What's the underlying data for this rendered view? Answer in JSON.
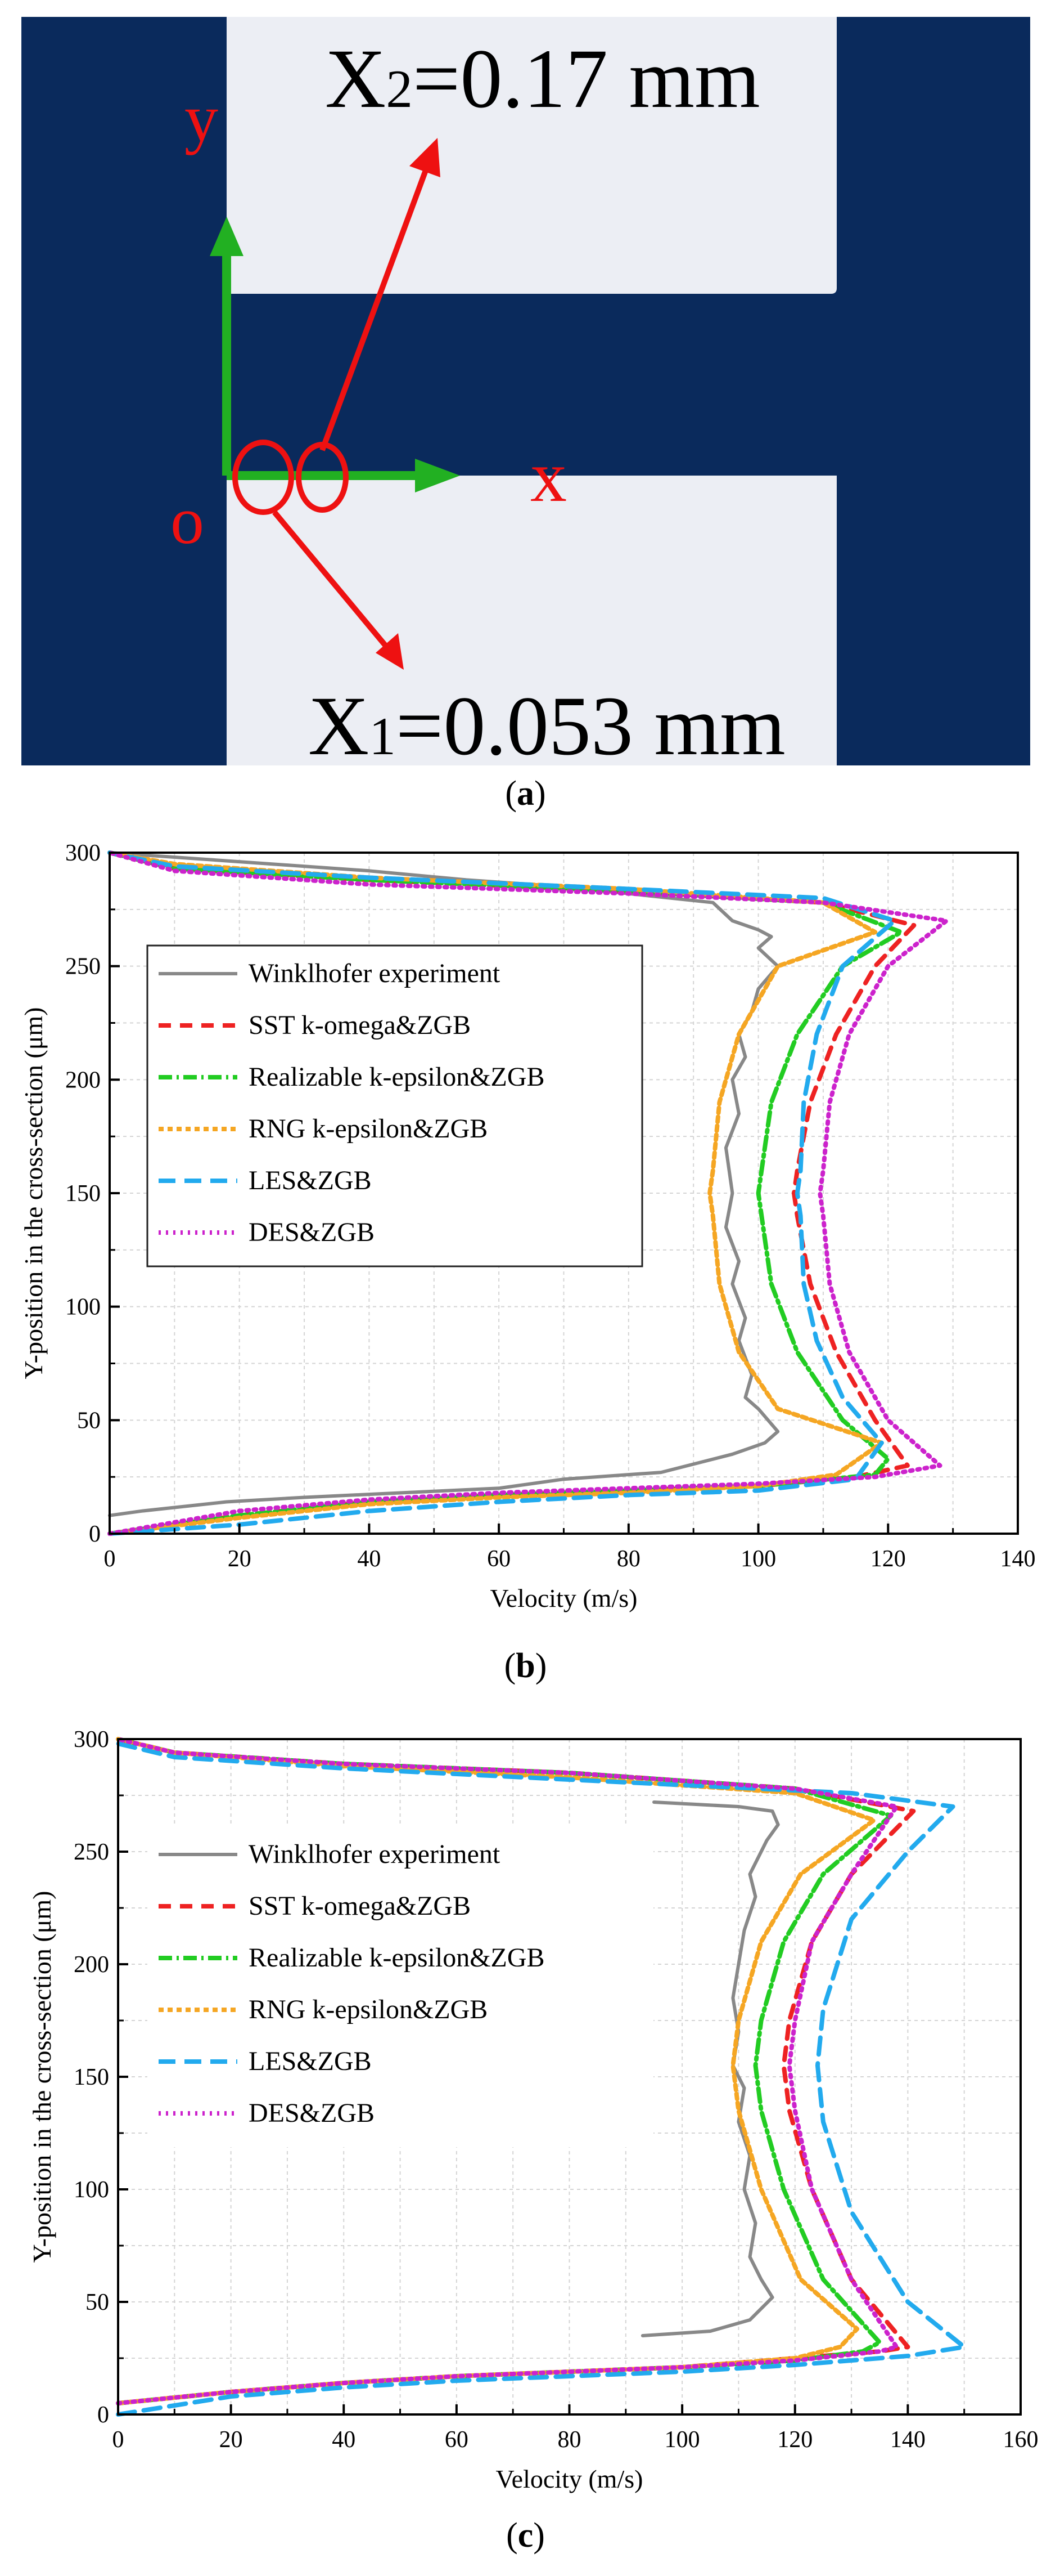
{
  "diagram": {
    "x2_label": "X2=0.17 mm",
    "x2_main": "X",
    "x2_sub": "2",
    "x2_rest": "=0.17 mm",
    "x1_label": "X1=0.053 mm",
    "x1_main": "X",
    "x1_sub": "1",
    "x1_rest": "=0.053 mm",
    "axis_y": "y",
    "axis_x": "x",
    "origin": "o",
    "background_color": "#0a2a5c",
    "wall_color": "#eceef4",
    "axis_color": "#22b022",
    "marker_color": "#ee1111"
  },
  "labels": {
    "a": "a",
    "b": "b",
    "c": "c",
    "open": "(",
    "close": ")"
  },
  "chart_data": [
    {
      "type": "line",
      "panel": "b",
      "xlabel": "Velocity (m/s)",
      "ylabel": "Y-position in the cross-section (μm)",
      "xlim": [
        0,
        140
      ],
      "ylim": [
        0,
        300
      ],
      "xticks": [
        "0",
        "20",
        "40",
        "60",
        "80",
        "100",
        "120",
        "140"
      ],
      "yticks": [
        "0",
        "50",
        "100",
        "150",
        "200",
        "250",
        "300"
      ],
      "legend_position": "upper-left",
      "series": [
        {
          "name": "Winklhofer experiment",
          "color": "#888888",
          "dash": "",
          "x": [
            0,
            5,
            18,
            30,
            45,
            60,
            70,
            85,
            96,
            101,
            103,
            100,
            98,
            99,
            97,
            98,
            96,
            97,
            95,
            96,
            95,
            97,
            96,
            98,
            97,
            99,
            100,
            103,
            100,
            102,
            100,
            96,
            93,
            70,
            55,
            40,
            20,
            0
          ],
          "y": [
            8,
            10,
            14,
            16,
            18,
            20,
            24,
            27,
            35,
            40,
            45,
            55,
            60,
            70,
            85,
            95,
            110,
            120,
            135,
            150,
            170,
            185,
            200,
            210,
            220,
            230,
            240,
            250,
            258,
            263,
            266,
            270,
            278,
            285,
            288,
            292,
            296,
            300
          ]
        },
        {
          "name": "SST k-omega&ZGB",
          "color": "#ee2222",
          "dash": "22,16",
          "x": [
            0,
            20,
            40,
            60,
            80,
            100,
            115,
            123,
            118,
            112,
            108,
            106,
            105.5,
            106,
            108,
            112,
            118,
            124,
            110,
            80,
            40,
            10,
            0
          ],
          "y": [
            0,
            8,
            14,
            17,
            19,
            21,
            25,
            30,
            50,
            80,
            110,
            140,
            150,
            160,
            190,
            220,
            250,
            268,
            278,
            283,
            288,
            293,
            300
          ]
        },
        {
          "name": "Realizable k-epsilon&ZGB",
          "color": "#22cc22",
          "dash": "24,8,4,8",
          "x": [
            0,
            20,
            40,
            60,
            80,
            100,
            118,
            120,
            113,
            106,
            102,
            100.5,
            100,
            100.5,
            102,
            106,
            113,
            122,
            110,
            80,
            40,
            10,
            0
          ],
          "y": [
            0,
            8,
            14,
            17,
            19,
            21,
            26,
            33,
            50,
            80,
            110,
            140,
            150,
            160,
            190,
            220,
            250,
            265,
            278,
            283,
            288,
            293,
            300
          ]
        },
        {
          "name": "RNG k-epsilon&ZGB",
          "color": "#f5a623",
          "dash": "9,7",
          "x": [
            0,
            20,
            40,
            60,
            80,
            100,
            112,
            119,
            103,
            97,
            94,
            93,
            92.5,
            93,
            94,
            97,
            103,
            118,
            110,
            80,
            40,
            10,
            0
          ],
          "y": [
            0,
            7,
            13,
            16,
            18,
            21,
            26,
            40,
            55,
            80,
            110,
            140,
            150,
            160,
            190,
            220,
            250,
            265,
            278,
            284,
            289,
            295,
            300
          ]
        },
        {
          "name": "LES&ZGB",
          "color": "#22aaee",
          "dash": "30,16",
          "x": [
            0,
            20,
            40,
            60,
            80,
            100,
            115,
            119,
            113,
            109,
            107,
            106.5,
            106,
            106.5,
            107,
            109,
            113,
            121,
            110,
            80,
            40,
            10,
            0
          ],
          "y": [
            0,
            4,
            10,
            14,
            17,
            19,
            24,
            40,
            60,
            85,
            110,
            140,
            150,
            160,
            190,
            220,
            250,
            270,
            280,
            284,
            289,
            294,
            300
          ]
        },
        {
          "name": "DES&ZGB",
          "color": "#cc22cc",
          "dash": "4,9",
          "x": [
            0,
            20,
            40,
            60,
            80,
            100,
            118,
            128,
            120,
            114,
            111,
            110,
            109.5,
            110,
            111,
            114,
            120,
            129,
            110,
            80,
            40,
            10,
            0
          ],
          "y": [
            0,
            10,
            15,
            18,
            20,
            22,
            25,
            30,
            50,
            80,
            110,
            140,
            150,
            160,
            190,
            220,
            250,
            270,
            278,
            282,
            286,
            292,
            300
          ]
        }
      ]
    },
    {
      "type": "line",
      "panel": "c",
      "xlabel": "Velocity (m/s)",
      "ylabel": "Y-position in the cross-section (μm)",
      "xlim": [
        0,
        160
      ],
      "ylim": [
        0,
        300
      ],
      "xticks": [
        "0",
        "20",
        "40",
        "60",
        "80",
        "100",
        "120",
        "140",
        "160"
      ],
      "yticks": [
        "0",
        "50",
        "100",
        "150",
        "200",
        "250",
        "300"
      ],
      "legend_position": "upper-left",
      "series": [
        {
          "name": "Winklhofer experiment",
          "color": "#888888",
          "dash": "",
          "x": [
            93,
            105,
            112,
            116,
            114,
            112,
            113,
            111,
            112,
            110,
            111,
            109,
            110,
            109,
            110,
            111,
            113,
            112,
            114,
            115,
            117,
            116,
            110,
            95
          ],
          "y": [
            35,
            37,
            42,
            52,
            60,
            70,
            85,
            100,
            115,
            130,
            145,
            155,
            170,
            185,
            200,
            215,
            230,
            240,
            250,
            255,
            262,
            268,
            270,
            272
          ]
        },
        {
          "name": "SST k-omega&ZGB",
          "color": "#ee2222",
          "dash": "22,16",
          "x": [
            0,
            20,
            40,
            60,
            80,
            100,
            120,
            135,
            140,
            130,
            123,
            119,
            118,
            119,
            123,
            130,
            141,
            120,
            80,
            40,
            10,
            0
          ],
          "y": [
            5,
            10,
            14,
            17,
            19,
            21,
            25,
            28,
            30,
            60,
            100,
            135,
            155,
            175,
            210,
            240,
            268,
            278,
            285,
            289,
            294,
            300
          ]
        },
        {
          "name": "Realizable k-epsilon&ZGB",
          "color": "#22cc22",
          "dash": "24,8,4,8",
          "x": [
            0,
            20,
            40,
            60,
            80,
            100,
            120,
            132,
            135,
            125,
            118,
            114,
            113,
            114,
            118,
            125,
            137,
            120,
            80,
            40,
            10,
            0
          ],
          "y": [
            5,
            10,
            14,
            17,
            19,
            21,
            24,
            28,
            32,
            60,
            100,
            135,
            155,
            175,
            210,
            240,
            266,
            278,
            285,
            289,
            294,
            300
          ]
        },
        {
          "name": "RNG k-epsilon&ZGB",
          "color": "#f5a623",
          "dash": "9,7",
          "x": [
            0,
            20,
            40,
            60,
            80,
            100,
            120,
            128,
            131,
            121,
            114,
            110,
            109,
            110,
            114,
            121,
            134,
            120,
            80,
            40,
            10,
            0
          ],
          "y": [
            5,
            10,
            14,
            17,
            19,
            21,
            25,
            30,
            38,
            60,
            100,
            135,
            155,
            175,
            210,
            240,
            264,
            276,
            283,
            288,
            294,
            300
          ]
        },
        {
          "name": "LES&ZGB",
          "color": "#22aaee",
          "dash": "30,16",
          "x": [
            0,
            20,
            40,
            60,
            80,
            100,
            120,
            140,
            150,
            140,
            130,
            125,
            124,
            125,
            130,
            140,
            148,
            130,
            80,
            40,
            10,
            0
          ],
          "y": [
            0,
            8,
            12,
            15,
            17,
            19,
            22,
            26,
            30,
            50,
            90,
            130,
            155,
            180,
            220,
            250,
            270,
            276,
            282,
            287,
            292,
            298
          ]
        },
        {
          "name": "DES&ZGB",
          "color": "#cc22cc",
          "dash": "4,9",
          "x": [
            0,
            20,
            40,
            60,
            80,
            100,
            120,
            135,
            138,
            130,
            123,
            120,
            119,
            120,
            123,
            130,
            138,
            120,
            80,
            40,
            10,
            0
          ],
          "y": [
            5,
            10,
            14,
            17,
            19,
            21,
            24,
            28,
            30,
            60,
            100,
            135,
            155,
            175,
            210,
            240,
            270,
            278,
            285,
            289,
            294,
            300
          ]
        }
      ]
    }
  ]
}
